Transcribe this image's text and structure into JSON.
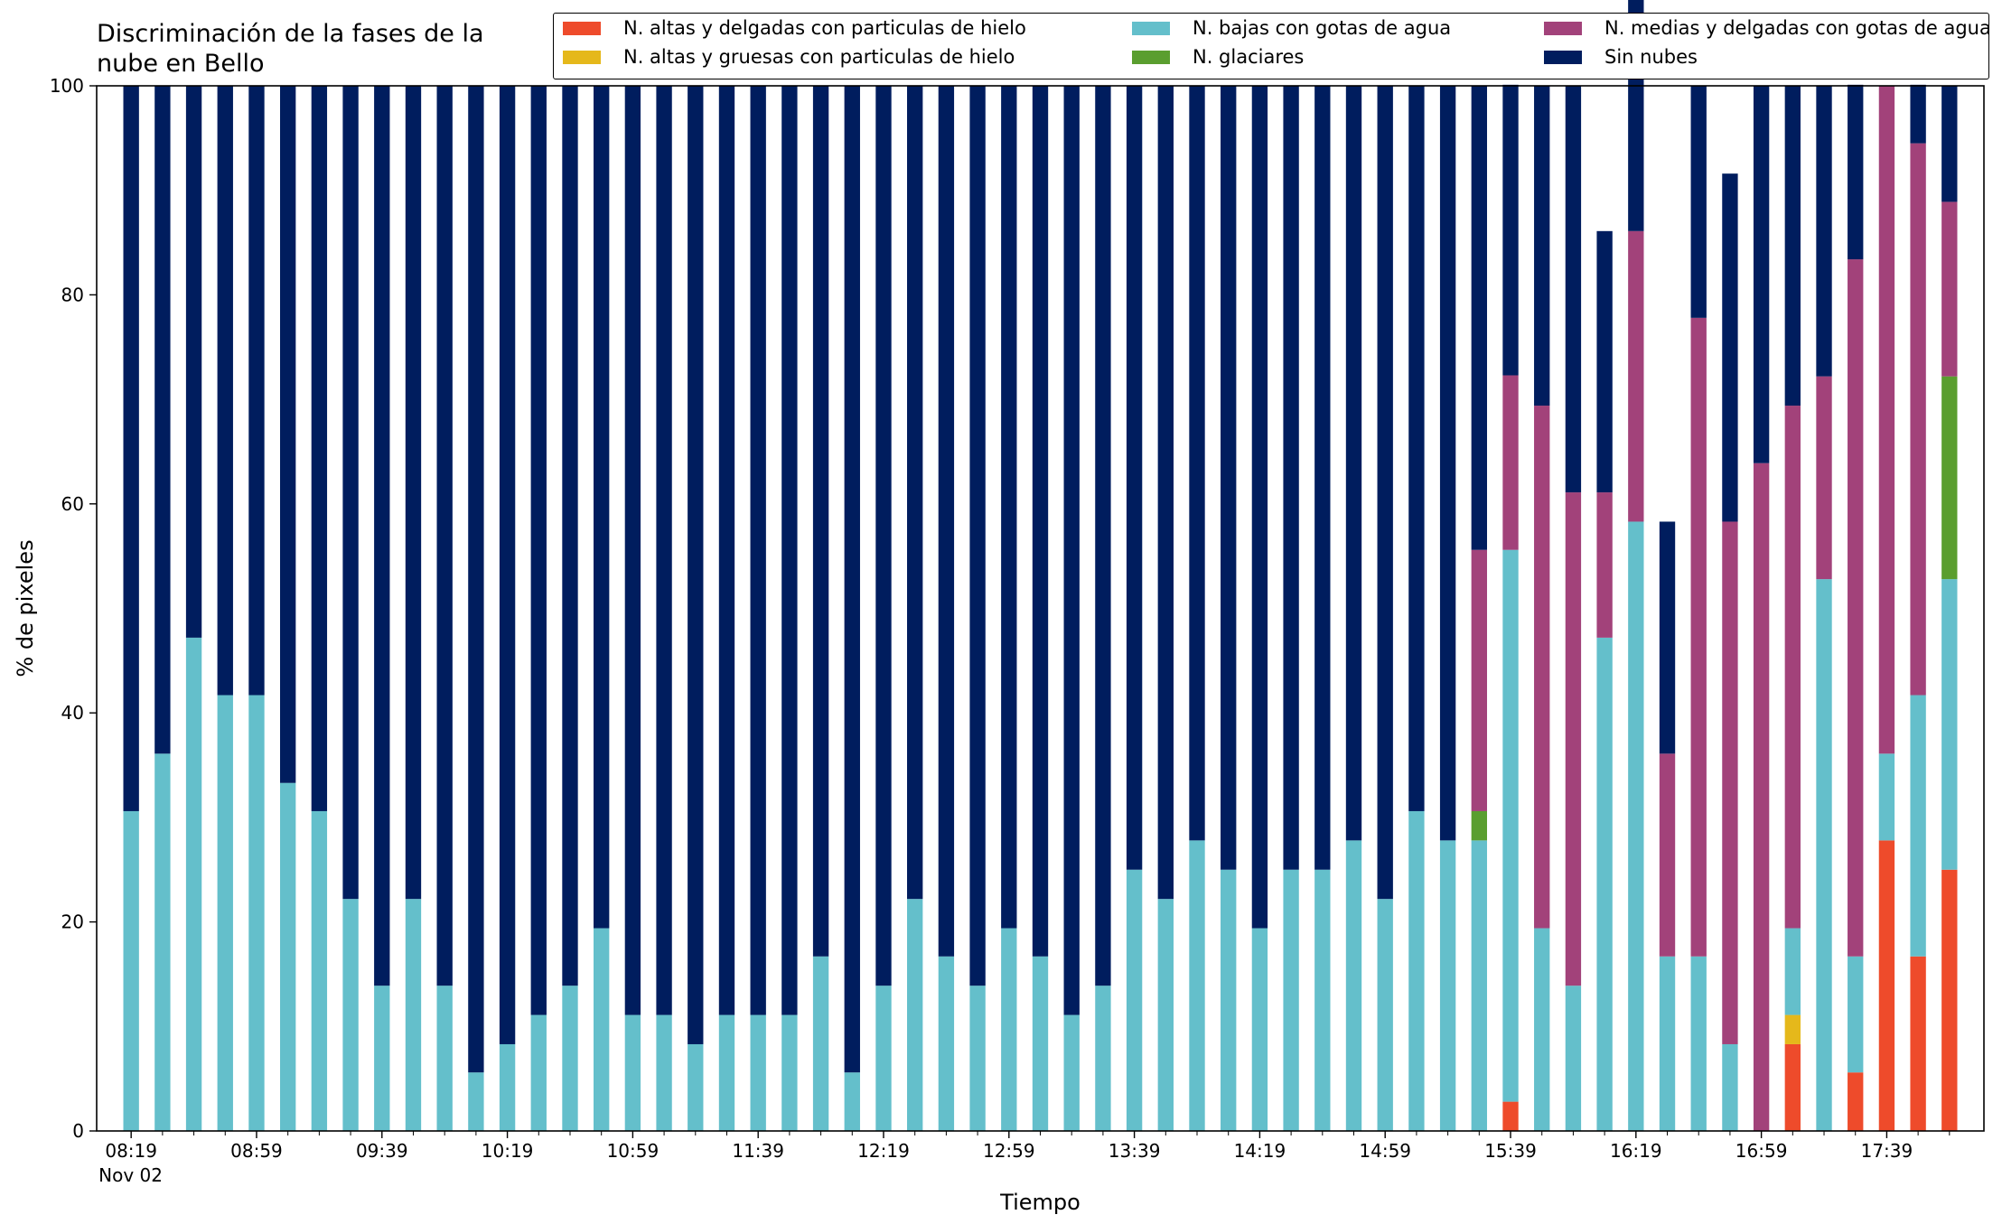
{
  "chart_data": {
    "type": "bar",
    "stacked": true,
    "title_lines": [
      "Discriminación de la fases de la",
      "nube en Bello"
    ],
    "xlabel": "Tiempo",
    "ylabel": "% de pixeles",
    "ylim": [
      0,
      100
    ],
    "y_ticks": [
      "0",
      "20",
      "40",
      "60",
      "80",
      "100"
    ],
    "x_tick_labels": [
      "08:19",
      "08:59",
      "09:39",
      "10:19",
      "10:59",
      "11:39",
      "12:19",
      "12:59",
      "13:39",
      "14:19",
      "14:59",
      "15:39",
      "16:19",
      "16:59",
      "17:39"
    ],
    "x_date_label": "Nov 02",
    "grid": false,
    "legend_position": "top-right",
    "colors": [
      "#ee4b2b",
      "#e5b81b",
      "#64bfcb",
      "#5a9e2f",
      "#a2427a",
      "#001d5e"
    ],
    "series": [
      {
        "name": "N. altas y delgadas con particulas de hielo",
        "values": [
          0,
          0,
          0,
          0,
          0,
          0,
          0,
          0,
          0,
          0,
          0,
          0,
          0,
          0,
          0,
          0,
          0,
          0,
          0,
          0,
          0,
          0,
          0,
          0,
          0,
          0,
          0,
          0,
          0,
          0,
          0,
          0,
          0,
          0,
          0,
          0,
          0,
          0,
          0,
          0,
          0,
          0,
          0,
          0,
          2.8,
          0,
          0,
          0,
          0,
          0,
          0,
          0,
          0,
          8.3,
          0,
          5.6,
          27.8,
          16.7,
          25
        ]
      },
      {
        "name": "N. altas y gruesas con particulas de hielo",
        "values": [
          0,
          0,
          0,
          0,
          0,
          0,
          0,
          0,
          0,
          0,
          0,
          0,
          0,
          0,
          0,
          0,
          0,
          0,
          0,
          0,
          0,
          0,
          0,
          0,
          0,
          0,
          0,
          0,
          0,
          0,
          0,
          0,
          0,
          0,
          0,
          0,
          0,
          0,
          0,
          0,
          0,
          0,
          0,
          0,
          0,
          0,
          0,
          0,
          0,
          0,
          0,
          0,
          0,
          2.8,
          0,
          0,
          0,
          0,
          0
        ]
      },
      {
        "name": "N. bajas con gotas de agua",
        "values": [
          30.6,
          36.1,
          47.2,
          41.7,
          41.7,
          33.3,
          30.6,
          22.2,
          13.9,
          22.2,
          13.9,
          5.6,
          8.3,
          11.1,
          13.9,
          19.4,
          11.1,
          11.1,
          8.3,
          11.1,
          11.1,
          11.1,
          16.7,
          5.6,
          13.9,
          22.2,
          16.7,
          13.9,
          19.4,
          16.7,
          11.1,
          13.9,
          25,
          22.2,
          27.8,
          25,
          19.4,
          25,
          25,
          27.8,
          22.2,
          30.6,
          27.8,
          27.8,
          52.8,
          19.4,
          13.9,
          47.2,
          58.3,
          16.7,
          16.7,
          8.3,
          0,
          8.3,
          52.8,
          11.1,
          8.3,
          25,
          27.8
        ]
      },
      {
        "name": "N. glaciares",
        "values": [
          0,
          0,
          0,
          0,
          0,
          0,
          0,
          0,
          0,
          0,
          0,
          0,
          0,
          0,
          0,
          0,
          0,
          0,
          0,
          0,
          0,
          0,
          0,
          0,
          0,
          0,
          0,
          0,
          0,
          0,
          0,
          0,
          0,
          0,
          0,
          0,
          0,
          0,
          0,
          0,
          0,
          0,
          0,
          2.8,
          0,
          0,
          0,
          0,
          0,
          0,
          0,
          0,
          0,
          0,
          0,
          0,
          0,
          0,
          19.4
        ]
      },
      {
        "name": "N. medias y delgadas con gotas de agua",
        "values": [
          0,
          0,
          0,
          0,
          0,
          0,
          0,
          0,
          0,
          0,
          0,
          0,
          0,
          0,
          0,
          0,
          0,
          0,
          0,
          0,
          0,
          0,
          0,
          0,
          0,
          0,
          0,
          0,
          0,
          0,
          0,
          0,
          0,
          0,
          0,
          0,
          0,
          0,
          0,
          0,
          0,
          0,
          0,
          25,
          16.7,
          50,
          47.2,
          13.9,
          27.8,
          19.4,
          61.1,
          50,
          63.9,
          50,
          19.4,
          66.7,
          63.9,
          52.8,
          16.7
        ]
      },
      {
        "name": "Sin nubes",
        "values": [
          69.4,
          63.9,
          52.8,
          58.3,
          58.3,
          66.7,
          69.4,
          77.8,
          86.1,
          77.8,
          86.1,
          94.4,
          91.7,
          88.9,
          86.1,
          80.6,
          88.9,
          88.9,
          91.7,
          88.9,
          88.9,
          88.9,
          83.3,
          94.4,
          86.1,
          77.8,
          83.3,
          86.1,
          80.6,
          83.3,
          88.9,
          86.1,
          75,
          77.8,
          72.2,
          75,
          80.6,
          75,
          75,
          72.2,
          77.8,
          69.4,
          72.2,
          44.4,
          27.8,
          30.6,
          38.9,
          25,
          22.2,
          22.2,
          22.2,
          33.3,
          36.1,
          30.6,
          27.8,
          16.7,
          0,
          5.6,
          11.1
        ]
      }
    ]
  }
}
